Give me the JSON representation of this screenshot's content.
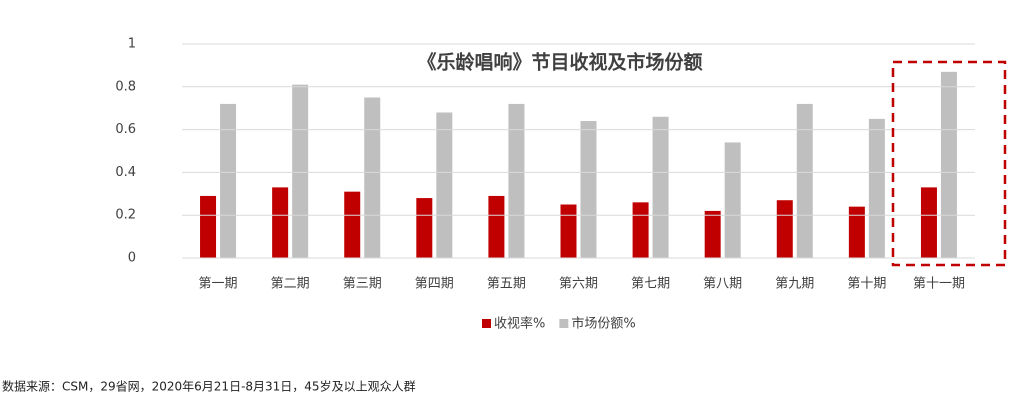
{
  "chart_data": {
    "type": "bar",
    "title": "《乐龄唱响》节目收视及市场份额",
    "categories": [
      "第一期",
      "第二期",
      "第三期",
      "第四期",
      "第五期",
      "第六期",
      "第七期",
      "第八期",
      "第九期",
      "第十期",
      "第十一期"
    ],
    "series": [
      {
        "name": "收视率%",
        "color": "#c00000",
        "values": [
          0.29,
          0.33,
          0.31,
          0.28,
          0.29,
          0.25,
          0.26,
          0.22,
          0.27,
          0.24,
          0.33
        ]
      },
      {
        "name": "市场份额%",
        "color": "#bfbfbf",
        "values": [
          0.72,
          0.81,
          0.75,
          0.68,
          0.72,
          0.64,
          0.66,
          0.54,
          0.72,
          0.65,
          0.87
        ]
      }
    ],
    "ylim": [
      0,
      1
    ],
    "yticks": [
      0,
      0.2,
      0.4,
      0.6,
      0.8,
      1
    ],
    "grid": true,
    "legend": "bottom"
  },
  "source": "数据来源：CSM，29省网，2020年6月21日-8月31日，45岁及以上观众人群"
}
